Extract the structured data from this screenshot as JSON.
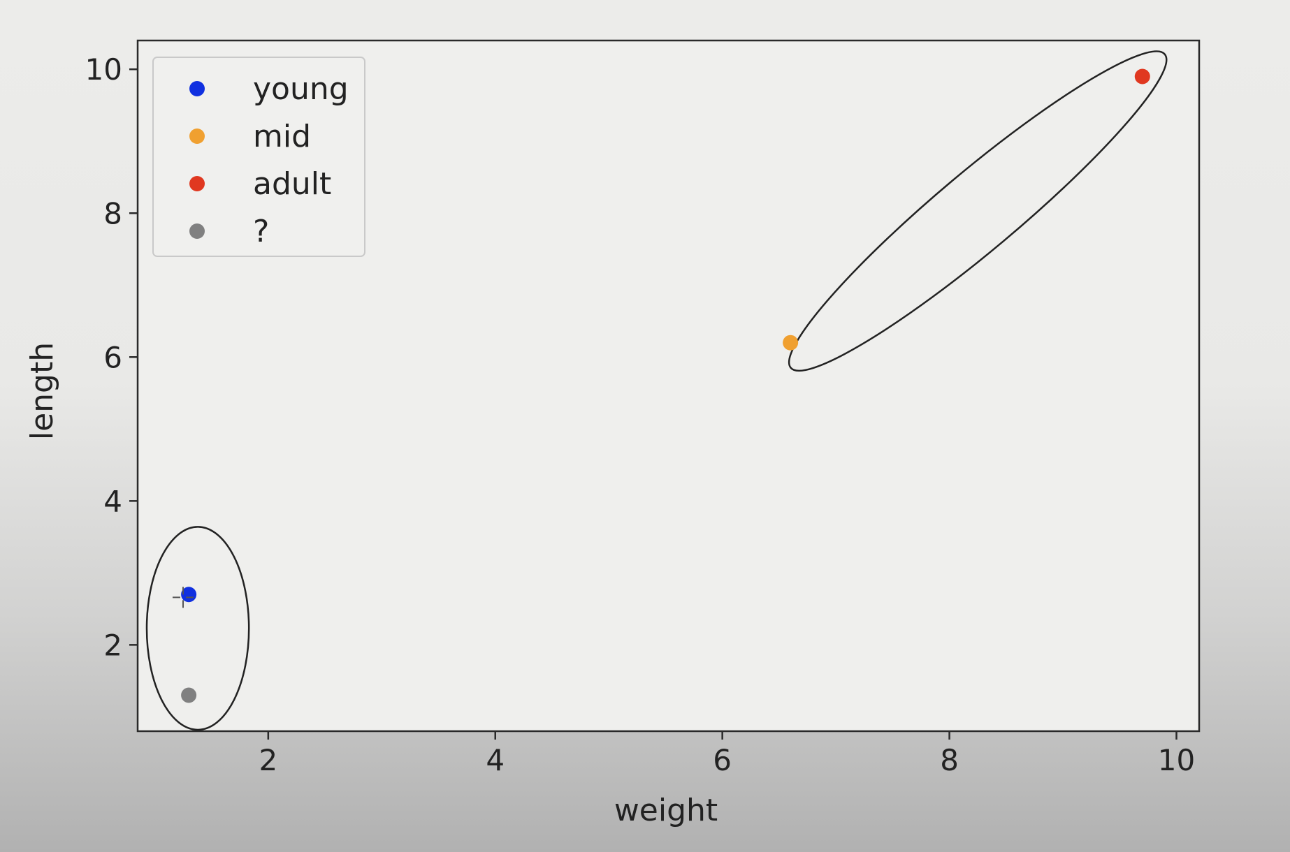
{
  "chart_data": {
    "type": "scatter",
    "xlabel": "weight",
    "ylabel": "length",
    "xlim": [
      0.85,
      10.2
    ],
    "ylim": [
      0.8,
      10.4
    ],
    "x_ticks": [
      2,
      4,
      6,
      8,
      10
    ],
    "y_ticks": [
      2,
      4,
      6,
      8,
      10
    ],
    "grid": false,
    "legend_position": "upper-left",
    "series": [
      {
        "name": "young",
        "color": "#1030e0",
        "points": [
          [
            1.3,
            2.7
          ]
        ]
      },
      {
        "name": "mid",
        "color": "#f0a030",
        "points": [
          [
            6.6,
            6.2
          ]
        ]
      },
      {
        "name": "adult",
        "color": "#e03820",
        "points": [
          [
            9.7,
            9.9
          ]
        ]
      },
      {
        "name": "?",
        "color": "#808080",
        "points": [
          [
            1.3,
            1.3
          ]
        ]
      }
    ],
    "annotations": [
      {
        "type": "ellipse",
        "center": [
          1.38,
          2.23
        ],
        "radii": [
          0.45,
          1.41
        ],
        "rotation_deg": 0
      },
      {
        "type": "ellipse",
        "center": [
          8.25,
          8.03
        ],
        "radii": [
          2.15,
          0.55
        ],
        "rotation_deg": -40
      },
      {
        "type": "cursor",
        "description": "mouse cursor crosshair",
        "at": [
          1.25,
          2.66
        ]
      }
    ]
  }
}
